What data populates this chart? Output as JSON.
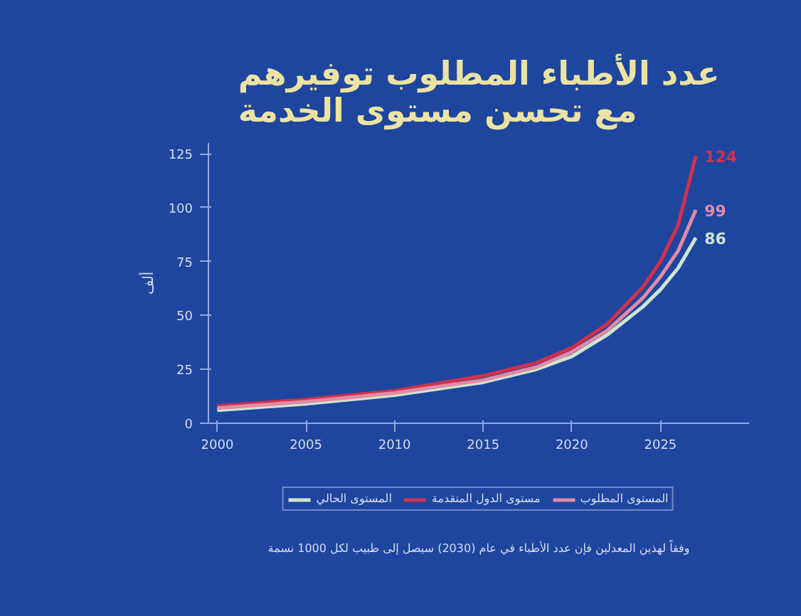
{
  "chart_data": {
    "type": "line",
    "title": "عدد الأطباء المطلوب توفيرهم\nمع تحسن مستوى الخدمة",
    "ylabel": "ألف",
    "x": [
      2000,
      2005,
      2010,
      2015,
      2018,
      2020,
      2022,
      2024,
      2025,
      2026,
      2027
    ],
    "series": [
      {
        "name": "المستوى الحالي",
        "color": "#cfe6cf",
        "values": [
          6,
          9,
          13,
          19,
          25,
          31,
          41,
          54,
          62,
          72,
          86
        ],
        "value_labels": [
          null,
          null,
          null,
          null,
          null,
          null,
          null,
          null,
          null,
          null,
          "86"
        ]
      },
      {
        "name": "مستوى الدول المتقدمة",
        "color": "#d0304c",
        "values": [
          8,
          11,
          15,
          22,
          28,
          35,
          46,
          63,
          75,
          92,
          124
        ],
        "value_labels": [
          null,
          null,
          null,
          null,
          null,
          null,
          null,
          null,
          null,
          null,
          "124"
        ]
      },
      {
        "name": "المستوى المطلوب",
        "color": "#e28aa6",
        "values": [
          7,
          10,
          14,
          20,
          26,
          33,
          43,
          58,
          68,
          80,
          99
        ],
        "value_labels": [
          null,
          null,
          null,
          null,
          null,
          null,
          null,
          null,
          null,
          null,
          "99"
        ]
      }
    ],
    "xlim": [
      1999.5,
      2030
    ],
    "ylim": [
      0,
      130
    ],
    "xticks": [
      2000,
      2005,
      2010,
      2015,
      2020,
      2025
    ],
    "yticks": [
      0,
      25,
      50,
      75,
      100,
      125
    ],
    "grid": false,
    "legend": "bottom",
    "marker": "none",
    "line_style": "solid",
    "annotations": [
      "وفقاً لهذين المعدلين فإن عدد الأطباء في عام (2030) سيصل إلى طبيب لكل 1000 نسمة"
    ]
  }
}
